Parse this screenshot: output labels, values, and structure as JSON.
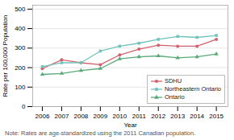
{
  "chart_data": {
    "type": "line",
    "x": [
      2006,
      2007,
      2008,
      2009,
      2010,
      2011,
      2012,
      2013,
      2014,
      2015
    ],
    "series": [
      {
        "name": "SDHU",
        "color": "#d4606e",
        "marker": "circle",
        "values": [
          195,
          240,
          225,
          215,
          265,
          295,
          315,
          310,
          310,
          345
        ]
      },
      {
        "name": "Northeastern Ontario",
        "color": "#70c4bc",
        "marker": "square",
        "values": [
          205,
          225,
          225,
          285,
          310,
          325,
          345,
          360,
          355,
          365
        ]
      },
      {
        "name": "Ontario",
        "color": "#5aaa78",
        "marker": "triangle",
        "values": [
          165,
          170,
          185,
          195,
          245,
          255,
          260,
          250,
          255,
          270
        ]
      }
    ],
    "xlabel": "Year",
    "ylabel": "Rate per 100,000 Population",
    "note": "Note: Rates are age-standardized using the 2011 Canadian population.",
    "xlim": [
      2005.5,
      2015.6
    ],
    "xticks": [
      2006,
      2007,
      2008,
      2009,
      2010,
      2011,
      2012,
      2013,
      2014,
      2015
    ],
    "ylim": [
      0,
      520
    ],
    "yticks": [
      0,
      100,
      200,
      300,
      400,
      500
    ],
    "grid": true,
    "legend": "lower right"
  }
}
